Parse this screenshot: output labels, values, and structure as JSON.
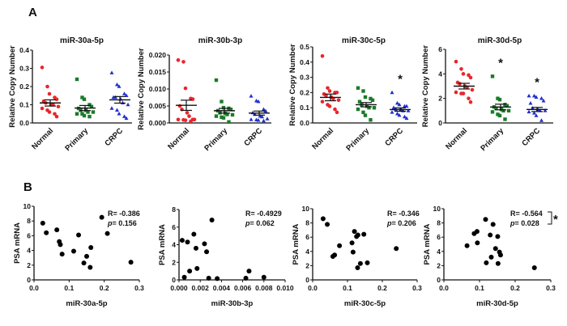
{
  "panels": {
    "a": "A",
    "b": "B"
  },
  "colors": {
    "normal": "#e8262b",
    "primary": "#1b7a2a",
    "crpc": "#1f2fd0",
    "axis": "#111111"
  },
  "chart_data": [
    {
      "panel": "A",
      "type": "scatter",
      "title": "miR-30a-5p",
      "ylabel": "Relative Copy Number",
      "ylim": [
        0,
        0.4
      ],
      "yticks": [
        0,
        0.1,
        0.2,
        0.3,
        0.4
      ],
      "ytick_labels": [
        "0.0",
        "0.1",
        "0.2",
        "0.3",
        "0.4"
      ],
      "categories": [
        "Normal",
        "Primary",
        "CRPC"
      ],
      "series": [
        {
          "name": "Normal",
          "marker": "circle",
          "values": [
            0.305,
            0.2,
            0.16,
            0.14,
            0.13,
            0.12,
            0.11,
            0.1,
            0.1,
            0.09,
            0.08,
            0.07,
            0.06,
            0.05,
            0.035
          ],
          "mean": 0.11,
          "sem": 0.017,
          "sig": ""
        },
        {
          "name": "Primary",
          "marker": "square",
          "values": [
            0.24,
            0.14,
            0.13,
            0.1,
            0.09,
            0.08,
            0.07,
            0.07,
            0.06,
            0.06,
            0.05,
            0.05,
            0.04,
            0.035
          ],
          "mean": 0.082,
          "sem": 0.014,
          "sig": ""
        },
        {
          "name": "CRPC",
          "marker": "triangle",
          "values": [
            0.275,
            0.21,
            0.2,
            0.16,
            0.15,
            0.14,
            0.14,
            0.13,
            0.11,
            0.1,
            0.08,
            0.07,
            0.05,
            0.035,
            0.025
          ],
          "mean": 0.127,
          "sem": 0.018,
          "sig": ""
        }
      ]
    },
    {
      "panel": "A",
      "type": "scatter",
      "title": "miR-30b-3p",
      "ylabel": "Relative Copy Number",
      "ylim": [
        0,
        0.02
      ],
      "yticks": [
        0,
        0.005,
        0.01,
        0.015,
        0.02
      ],
      "ytick_labels": [
        "0.000",
        "0.005",
        "0.010",
        "0.015",
        "0.020"
      ],
      "categories": [
        "Normal",
        "Primary",
        "CRPC"
      ],
      "series": [
        {
          "name": "Normal",
          "marker": "circle",
          "values": [
            0.0185,
            0.018,
            0.0102,
            0.0072,
            0.007,
            0.005,
            0.004,
            0.003,
            0.002,
            0.001,
            0.001,
            0.0009,
            0.0008,
            0.0005,
            0.001
          ],
          "mean": 0.0052,
          "sem": 0.0015,
          "sig": ""
        },
        {
          "name": "Primary",
          "marker": "square",
          "values": [
            0.0126,
            0.0063,
            0.0045,
            0.0043,
            0.004,
            0.0036,
            0.003,
            0.0028,
            0.0025,
            0.0024,
            0.002,
            0.0017,
            0.0015,
            0.0003
          ],
          "mean": 0.0036,
          "sem": 0.0007,
          "sig": ""
        },
        {
          "name": "CRPC",
          "marker": "triangle",
          "values": [
            0.0079,
            0.0065,
            0.0063,
            0.004,
            0.0035,
            0.003,
            0.0025,
            0.002,
            0.0018,
            0.0012,
            0.001,
            0.0009,
            0.0008,
            0.0006
          ],
          "mean": 0.0029,
          "sem": 0.0006,
          "sig": ""
        }
      ]
    },
    {
      "panel": "A",
      "type": "scatter",
      "title": "miR-30c-5p",
      "ylabel": "Relative Copy Number",
      "ylim": [
        0,
        0.5
      ],
      "yticks": [
        0,
        0.1,
        0.2,
        0.3,
        0.4,
        0.5
      ],
      "ytick_labels": [
        "0.0",
        "0.1",
        "0.2",
        "0.3",
        "0.4",
        "0.5"
      ],
      "categories": [
        "Normal",
        "Primary",
        "CRPC"
      ],
      "series": [
        {
          "name": "Normal",
          "marker": "circle",
          "values": [
            0.44,
            0.23,
            0.21,
            0.2,
            0.2,
            0.19,
            0.18,
            0.17,
            0.16,
            0.15,
            0.14,
            0.12,
            0.11,
            0.09,
            0.07
          ],
          "mean": 0.168,
          "sem": 0.022,
          "sig": ""
        },
        {
          "name": "Primary",
          "marker": "square",
          "values": [
            0.23,
            0.21,
            0.17,
            0.16,
            0.15,
            0.14,
            0.12,
            0.11,
            0.1,
            0.1,
            0.09,
            0.07,
            0.05,
            0.02
          ],
          "mean": 0.12,
          "sem": 0.014,
          "sig": ""
        },
        {
          "name": "CRPC",
          "marker": "triangle",
          "values": [
            0.2,
            0.13,
            0.12,
            0.11,
            0.11,
            0.1,
            0.09,
            0.09,
            0.08,
            0.08,
            0.07,
            0.06,
            0.05,
            0.04,
            0.03
          ],
          "mean": 0.088,
          "sem": 0.011,
          "sig": "*"
        }
      ]
    },
    {
      "panel": "A",
      "type": "scatter",
      "title": "miR-30d-5p",
      "ylabel": "Relative Copy Number",
      "ylim": [
        0,
        6
      ],
      "yticks": [
        0,
        2,
        4,
        6
      ],
      "ytick_labels": [
        "0",
        "2",
        "4",
        "6"
      ],
      "categories": [
        "Normal",
        "Primary",
        "CRPC"
      ],
      "series": [
        {
          "name": "Normal",
          "marker": "circle",
          "values": [
            5.0,
            4.4,
            4.0,
            3.9,
            3.7,
            3.3,
            3.2,
            3.0,
            2.9,
            2.7,
            2.5,
            2.4,
            2.4,
            2.0,
            1.7
          ],
          "mean": 3.0,
          "sem": 0.23,
          "sig": ""
        },
        {
          "name": "Primary",
          "marker": "square",
          "values": [
            3.8,
            2.0,
            1.9,
            1.5,
            1.4,
            1.3,
            1.2,
            1.1,
            1.0,
            1.0,
            0.9,
            0.7,
            0.6,
            0.3
          ],
          "mean": 1.3,
          "sem": 0.23,
          "sig": "*"
        },
        {
          "name": "CRPC",
          "marker": "triangle",
          "values": [
            2.2,
            2.2,
            2.1,
            2.0,
            1.8,
            1.6,
            1.2,
            1.1,
            1.0,
            1.0,
            0.9,
            0.8,
            0.6,
            0.2
          ],
          "mean": 1.1,
          "sem": 0.17,
          "sig": "*"
        }
      ]
    },
    {
      "panel": "B",
      "type": "scatter",
      "xlabel": "miR-30a-5p",
      "ylabel": "PSA mRNA",
      "xlim": [
        0,
        0.3
      ],
      "ylim": [
        0,
        10
      ],
      "xticks": [
        0,
        0.1,
        0.2,
        0.3
      ],
      "xtick_labels": [
        "0.0",
        "0.1",
        "0.2",
        "0.3"
      ],
      "yticks": [
        0,
        2,
        4,
        6,
        8,
        10
      ],
      "ytick_labels": [
        "0",
        "2",
        "4",
        "6",
        "8",
        "10"
      ],
      "r_text": "R= -0.386",
      "p_label": "p",
      "p_text": "= 0.156",
      "sig": "",
      "points": [
        [
          0.025,
          7.7
        ],
        [
          0.035,
          6.4
        ],
        [
          0.065,
          6.8
        ],
        [
          0.072,
          5.2
        ],
        [
          0.075,
          4.8
        ],
        [
          0.08,
          3.5
        ],
        [
          0.113,
          3.9
        ],
        [
          0.127,
          6.1
        ],
        [
          0.142,
          2.3
        ],
        [
          0.15,
          3.2
        ],
        [
          0.16,
          1.7
        ],
        [
          0.162,
          4.4
        ],
        [
          0.193,
          8.5
        ],
        [
          0.209,
          6.3
        ],
        [
          0.276,
          2.4
        ]
      ]
    },
    {
      "panel": "B",
      "type": "scatter",
      "xlabel": "miR-30b-3p",
      "ylabel": "PSA mRNA",
      "xlim": [
        0,
        0.01
      ],
      "ylim": [
        0,
        8
      ],
      "xticks": [
        0,
        0.002,
        0.004,
        0.006,
        0.008,
        0.01
      ],
      "xtick_labels": [
        "0.000",
        "0.002",
        "0.004",
        "0.006",
        "0.008",
        "0.010"
      ],
      "yticks": [
        0,
        2,
        4,
        6,
        8
      ],
      "ytick_labels": [
        "0",
        "2",
        "4",
        "6",
        "8"
      ],
      "r_text": "R= -0.4929",
      "p_label": "p",
      "p_text": "= 0.062",
      "sig": "",
      "points": [
        [
          0.0003,
          4.5
        ],
        [
          0.0005,
          0.3
        ],
        [
          0.0008,
          4.3
        ],
        [
          0.001,
          1.0
        ],
        [
          0.0014,
          5.2
        ],
        [
          0.0016,
          3.6
        ],
        [
          0.0017,
          1.3
        ],
        [
          0.0024,
          4.1
        ],
        [
          0.0026,
          3.2
        ],
        [
          0.0028,
          0.2
        ],
        [
          0.0031,
          6.8
        ],
        [
          0.0036,
          0.15
        ],
        [
          0.0063,
          0.2
        ],
        [
          0.0066,
          1.0
        ],
        [
          0.008,
          0.3
        ]
      ]
    },
    {
      "panel": "B",
      "type": "scatter",
      "xlabel": "miR-30c-5p",
      "ylabel": "PSA mRNA",
      "xlim": [
        0,
        0.3
      ],
      "ylim": [
        0,
        10
      ],
      "xticks": [
        0,
        0.1,
        0.2,
        0.3
      ],
      "xtick_labels": [
        "0.0",
        "0.1",
        "0.2",
        "0.3"
      ],
      "yticks": [
        0,
        2,
        4,
        6,
        8,
        10
      ],
      "ytick_labels": [
        "0",
        "2",
        "4",
        "6",
        "8",
        "10"
      ],
      "r_text": "R= -0.346",
      "p_label": "p",
      "p_text": "= 0.206",
      "sig": "",
      "points": [
        [
          0.03,
          8.6
        ],
        [
          0.042,
          7.8
        ],
        [
          0.058,
          3.3
        ],
        [
          0.063,
          3.5
        ],
        [
          0.077,
          4.8
        ],
        [
          0.113,
          5.2
        ],
        [
          0.116,
          3.9
        ],
        [
          0.12,
          6.8
        ],
        [
          0.126,
          6.1
        ],
        [
          0.13,
          6.3
        ],
        [
          0.129,
          1.7
        ],
        [
          0.137,
          2.3
        ],
        [
          0.147,
          6.4
        ],
        [
          0.157,
          2.4
        ],
        [
          0.24,
          4.4
        ]
      ]
    },
    {
      "panel": "B",
      "type": "scatter",
      "xlabel": "miR-30d-5p",
      "ylabel": "PSA mRNA",
      "xlim": [
        0,
        0.3
      ],
      "ylim": [
        0,
        10
      ],
      "xticks": [
        0,
        0.1,
        0.2,
        0.3
      ],
      "xtick_labels": [
        "0.0",
        "0.1",
        "0.2",
        "0.3"
      ],
      "yticks": [
        0,
        2,
        4,
        6,
        8,
        10
      ],
      "ytick_labels": [
        "0",
        "2",
        "4",
        "6",
        "8",
        "10"
      ],
      "r_text": "R= -0.564",
      "p_label": "p",
      "p_text": "= 0.028",
      "sig": "*",
      "points": [
        [
          0.065,
          4.8
        ],
        [
          0.085,
          6.5
        ],
        [
          0.093,
          6.8
        ],
        [
          0.094,
          5.2
        ],
        [
          0.117,
          8.5
        ],
        [
          0.119,
          2.4
        ],
        [
          0.13,
          6.3
        ],
        [
          0.133,
          3.2
        ],
        [
          0.138,
          7.8
        ],
        [
          0.145,
          4.4
        ],
        [
          0.151,
          6.1
        ],
        [
          0.152,
          2.3
        ],
        [
          0.156,
          3.9
        ],
        [
          0.159,
          3.5
        ],
        [
          0.254,
          1.7
        ]
      ]
    }
  ]
}
